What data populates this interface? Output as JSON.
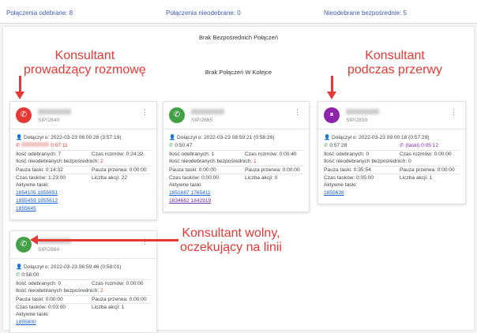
{
  "topbar": {
    "received": "Połączenia odebrane: 8",
    "missed": "Połączenia nieodebrane: 0",
    "missed_direct": "Nieodebrane bezpośrednie: 5"
  },
  "main": {
    "no_direct": "Brak Bezpośrednich Połączeń",
    "no_queue": "Brak Połączeń W Kolejce"
  },
  "colors": {
    "red": "#e53935",
    "green": "#43a047",
    "purple": "#8e24aa",
    "link": "#1a5fd0"
  },
  "annotations": {
    "talking": "Konsultant\nprowadzący rozmowę",
    "break": "Konsultant\npodczas przerwy",
    "free": "Konsultant wolny,\noczekujący na linii"
  },
  "cards": [
    {
      "sip": "SIP/2840",
      "status_icon": "phone-in-talk-icon",
      "joined": "Dołączył o: 2022-03-23 06:00:28 (3:57:19)",
      "call_time": "0:07:11",
      "received": "Ilość odebranych: 7",
      "talk_time": "Czas rozmów: 0:24:32",
      "missed_label": "Ilość nieodebranych bezpośrednich:",
      "missed": "2",
      "pause_task": "Pauza taski: 0:14:32",
      "pause_break": "Pauza przerwa: 0:00:00",
      "task_time": "Czas tasków: 1:23:00",
      "actions": "Liczba akcji: 22",
      "active_label": "Aktywne taski:",
      "tasks": [
        "1854105 1855651",
        "1855459 1855612",
        "1855645"
      ]
    },
    {
      "sip": "SIP/2865",
      "status_icon": "phone-icon",
      "joined": "Dołączył o: 2022-03-23 08:59:21 (0:58:26)",
      "call_time": "0:50:47",
      "received": "Ilość odebranych: 1",
      "talk_time": "Czas rozmów: 0:00:40",
      "missed_label": "Ilość nieodebranych bezpośrednich:",
      "missed": "1",
      "pause_task": "Pauza taski: 0:00:00",
      "pause_break": "Pauza przerwa: 0:00:00",
      "task_time": "Czas tasków: 0:00:00",
      "actions": "Liczba akcji: 0",
      "active_label": "Aktywne taski:",
      "tasks": [
        "1851687 1765411",
        "1834662 1842919"
      ]
    },
    {
      "sip": "SIP/2839",
      "status_icon": "phone-paused-icon",
      "joined": "Dołączył o: 2022-03-23 09:00:18 (0:57:29)",
      "call_time": "0:57:28",
      "pause_info": "(taski) 0:05:12",
      "received": "Ilość odebranych: 0",
      "talk_time": "Czas rozmów: 0:00:00",
      "missed_label": "Ilość nieodebranych bezpośrednich:",
      "missed": "0",
      "pause_task": "Pauza taski: 0:35:54",
      "pause_break": "Pauza przerwa: 0:00:00",
      "task_time": "Czas tasków: 0:05:00",
      "actions": "Liczba akcji: 1",
      "active_label": "Aktywne taski:",
      "tasks": [
        "1855638"
      ]
    },
    {
      "sip": "SIP/2884",
      "status_icon": "phone-icon",
      "joined": "Dołączył o: 2022-03-23 08:59:46 (0:58:01)",
      "call_time": "0:58:00",
      "received": "Ilość odebranych: 0",
      "talk_time": "Czas rozmów: 0:00:00",
      "missed_label": "Ilość nieodebranych bezpośrednich:",
      "missed": "2",
      "pause_task": "Pauza taski: 0:00:00",
      "pause_break": "Pauza przerwa: 0:00:00",
      "task_time": "Czas tasków: 0:03:00",
      "actions": "Liczba akcji: 1",
      "active_label": "Aktywne taski:",
      "tasks": [
        "1855800"
      ]
    }
  ]
}
